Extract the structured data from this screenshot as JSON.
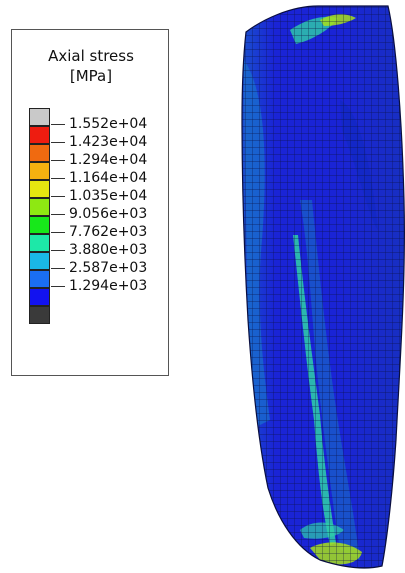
{
  "legend": {
    "title_line1": "Axial stress",
    "title_line2": "[MPa]",
    "levels": [
      {
        "label": "1.552e+04",
        "color": "#c9c9c9"
      },
      {
        "label": "1.423e+04",
        "color": "#ee1c10"
      },
      {
        "label": "1.294e+04",
        "color": "#f06a10"
      },
      {
        "label": "1.164e+04",
        "color": "#f5b110"
      },
      {
        "label": "1.035e+04",
        "color": "#e6e610"
      },
      {
        "label": "9.056e+03",
        "color": "#8ee812"
      },
      {
        "label": "7.762e+03",
        "color": "#17e81a"
      },
      {
        "label": "3.880e+03",
        "color": "#1de8a8"
      },
      {
        "label": "2.587e+03",
        "color": "#1ab8e6"
      },
      {
        "label": "1.294e+03",
        "color": "#1a6ef2"
      },
      {
        "label": "",
        "color": "#1212f0"
      },
      {
        "label": "",
        "color": "#3a3a3a"
      }
    ]
  },
  "model": {
    "base_color": "#1a24d6",
    "mid_color": "#1a5ecb",
    "highlight_color": "#2fd0a8",
    "hot_color": "#a8e01a",
    "mesh_color": "#0a0f40"
  }
}
